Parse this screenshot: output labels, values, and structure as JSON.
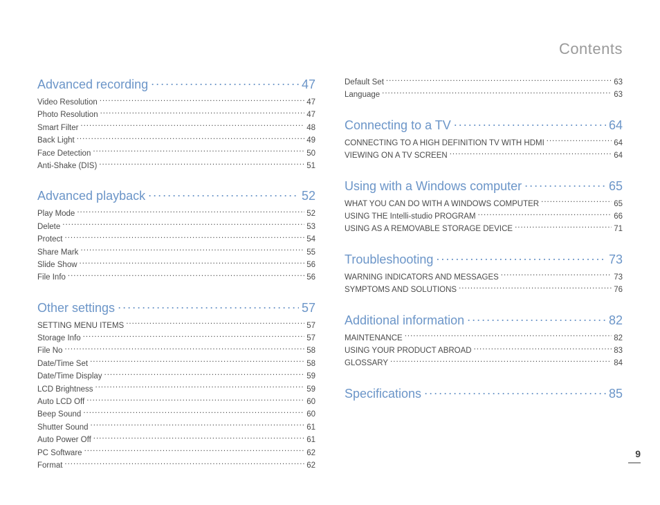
{
  "header": {
    "title": "Contents"
  },
  "footer": {
    "page": "9"
  },
  "colors": {
    "accent": "#6b95c8",
    "text": "#4a4a4a",
    "header_gray": "#9a9a9a",
    "background": "#ffffff"
  },
  "typography": {
    "section_fontsize": 18,
    "entry_fontsize": 11.5,
    "header_fontsize": 22
  },
  "columns": [
    {
      "sections": [
        {
          "title": "Advanced recording",
          "page": "47",
          "entries": [
            {
              "label": "Video Resolution",
              "page": "47"
            },
            {
              "label": "Photo Resolution",
              "page": "47"
            },
            {
              "label": "Smart Filter",
              "page": "48"
            },
            {
              "label": "Back Light",
              "page": "49"
            },
            {
              "label": "Face Detection",
              "page": "50"
            },
            {
              "label": "Anti-Shake (DIS)",
              "page": "51"
            }
          ]
        },
        {
          "title": "Advanced playback",
          "page": "52",
          "entries": [
            {
              "label": "Play Mode",
              "page": "52"
            },
            {
              "label": "Delete",
              "page": "53"
            },
            {
              "label": "Protect",
              "page": "54"
            },
            {
              "label": "Share Mark",
              "page": "55"
            },
            {
              "label": "Slide Show",
              "page": "56"
            },
            {
              "label": "File Info",
              "page": "56"
            }
          ]
        },
        {
          "title": "Other settings",
          "page": "57",
          "entries": [
            {
              "label": "SETTING MENU ITEMS",
              "page": "57",
              "upper": true
            },
            {
              "label": "Storage Info",
              "page": "57"
            },
            {
              "label": "File No",
              "page": "58"
            },
            {
              "label": "Date/Time Set",
              "page": "58"
            },
            {
              "label": "Date/Time Display",
              "page": "59"
            },
            {
              "label": "LCD Brightness",
              "page": "59"
            },
            {
              "label": "Auto LCD Off",
              "page": "60"
            },
            {
              "label": "Beep Sound",
              "page": "60"
            },
            {
              "label": "Shutter Sound",
              "page": "61"
            },
            {
              "label": "Auto Power Off",
              "page": "61"
            },
            {
              "label": "PC Software",
              "page": "62"
            },
            {
              "label": "Format",
              "page": "62"
            }
          ]
        }
      ]
    },
    {
      "sections": [
        {
          "title": null,
          "page": null,
          "entries": [
            {
              "label": "Default Set",
              "page": "63"
            },
            {
              "label": "Language",
              "page": "63"
            }
          ]
        },
        {
          "title": "Connecting to a TV",
          "page": "64",
          "entries": [
            {
              "label": "CONNECTING TO A HIGH DEFINITION TV WITH HDMI",
              "page": "64",
              "upper": true
            },
            {
              "label": "VIEWING ON A TV SCREEN",
              "page": "64",
              "upper": true
            }
          ]
        },
        {
          "title": "Using with a Windows computer",
          "page": "65",
          "entries": [
            {
              "label": "WHAT YOU CAN DO WITH A WINDOWS COMPUTER",
              "page": "65",
              "upper": true
            },
            {
              "label": "USING THE Intelli-studio PROGRAM",
              "page": "66",
              "upper": false
            },
            {
              "label": "USING AS A REMOVABLE STORAGE DEVICE",
              "page": "71",
              "upper": true
            }
          ]
        },
        {
          "title": "Troubleshooting",
          "page": "73",
          "entries": [
            {
              "label": "WARNING INDICATORS AND MESSAGES",
              "page": "73",
              "upper": true
            },
            {
              "label": "SYMPTOMS AND SOLUTIONS",
              "page": "76",
              "upper": true
            }
          ]
        },
        {
          "title": "Additional information",
          "page": "82",
          "entries": [
            {
              "label": "MAINTENANCE",
              "page": "82",
              "upper": true
            },
            {
              "label": "USING YOUR PRODUCT ABROAD",
              "page": "83",
              "upper": true
            },
            {
              "label": "GLOSSARY",
              "page": "84",
              "upper": true
            }
          ]
        },
        {
          "title": "Specifications",
          "page": "85",
          "entries": []
        }
      ]
    }
  ]
}
